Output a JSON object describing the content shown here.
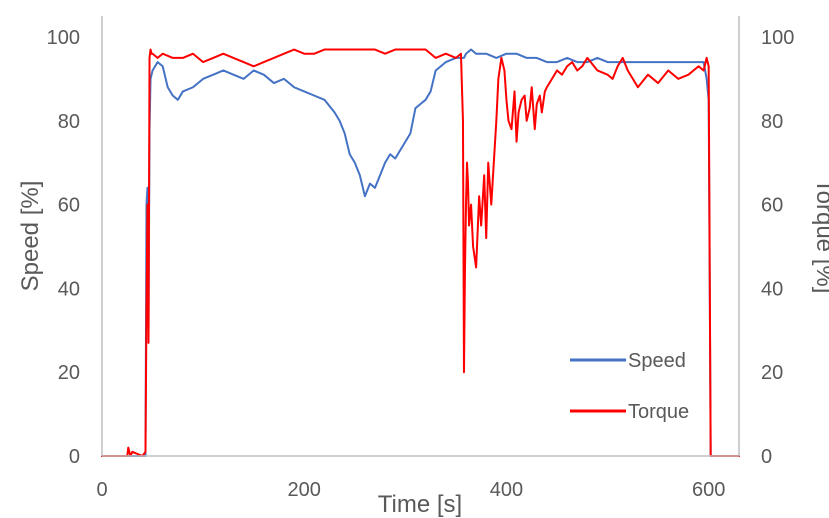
{
  "chart_data": {
    "type": "line",
    "title": "",
    "xlabel": "Time [s]",
    "ylabel": "Speed [%]",
    "y2label": "Torque [%]",
    "xlim": [
      0,
      630
    ],
    "ylim": [
      0,
      105
    ],
    "y2lim": [
      0,
      105
    ],
    "x_ticks": [
      "0",
      "200",
      "400",
      "600"
    ],
    "y_ticks": [
      "0",
      "20",
      "40",
      "60",
      "80",
      "100"
    ],
    "y2_ticks": [
      "0",
      "20",
      "40",
      "60",
      "80",
      "100"
    ],
    "grid": false,
    "legend_position": "bottom-right",
    "series": [
      {
        "name": "Speed",
        "axis": "left",
        "color": "#4472c4",
        "x": [
          0,
          43,
          44,
          45,
          46,
          47,
          48,
          50,
          55,
          60,
          65,
          70,
          75,
          80,
          90,
          100,
          110,
          120,
          130,
          140,
          150,
          160,
          170,
          180,
          190,
          200,
          210,
          220,
          230,
          235,
          240,
          245,
          250,
          255,
          260,
          265,
          270,
          275,
          280,
          285,
          290,
          295,
          300,
          305,
          310,
          315,
          320,
          325,
          330,
          340,
          350,
          358,
          360,
          365,
          370,
          380,
          390,
          400,
          410,
          420,
          430,
          440,
          450,
          460,
          470,
          480,
          490,
          500,
          520,
          540,
          560,
          580,
          595,
          598,
          600,
          602,
          605,
          610,
          620,
          630
        ],
        "y": [
          0,
          0,
          60,
          64,
          30,
          78,
          90,
          92,
          94,
          93,
          88,
          86,
          85,
          87,
          88,
          90,
          91,
          92,
          91,
          90,
          92,
          91,
          89,
          90,
          88,
          87,
          86,
          85,
          82,
          80,
          77,
          72,
          70,
          67,
          62,
          65,
          64,
          67,
          70,
          72,
          71,
          73,
          75,
          77,
          83,
          84,
          85,
          87,
          92,
          94,
          95,
          95,
          96,
          97,
          96,
          96,
          95,
          96,
          96,
          95,
          95,
          94,
          94,
          95,
          94,
          94,
          95,
          94,
          94,
          94,
          94,
          94,
          94,
          90,
          85,
          0,
          0,
          0,
          0,
          0
        ]
      },
      {
        "name": "Torque",
        "axis": "right",
        "color": "#ff0000",
        "x": [
          0,
          25,
          26,
          28,
          30,
          40,
          43,
          44,
          45,
          46,
          47,
          48,
          49,
          50,
          55,
          60,
          70,
          80,
          90,
          100,
          110,
          120,
          130,
          140,
          150,
          160,
          170,
          180,
          190,
          200,
          210,
          220,
          230,
          240,
          250,
          260,
          270,
          280,
          290,
          300,
          310,
          320,
          330,
          340,
          350,
          355,
          357,
          358,
          359,
          360,
          361,
          362,
          363,
          365,
          367,
          370,
          373,
          375,
          378,
          380,
          382,
          385,
          388,
          390,
          392,
          395,
          398,
          400,
          402,
          405,
          408,
          410,
          412,
          415,
          418,
          420,
          423,
          425,
          428,
          430,
          433,
          435,
          438,
          440,
          445,
          450,
          455,
          460,
          465,
          470,
          475,
          480,
          490,
          500,
          505,
          510,
          515,
          520,
          530,
          540,
          550,
          560,
          570,
          580,
          590,
          595,
          598,
          600,
          602,
          605,
          610,
          620,
          630
        ],
        "y": [
          0,
          0,
          2,
          0,
          1,
          0,
          1,
          35,
          60,
          27,
          95,
          97,
          96,
          96,
          95,
          96,
          95,
          95,
          96,
          94,
          95,
          96,
          95,
          94,
          93,
          94,
          95,
          96,
          97,
          96,
          96,
          97,
          97,
          97,
          97,
          97,
          97,
          96,
          97,
          97,
          97,
          97,
          95,
          96,
          95,
          96,
          80,
          20,
          45,
          60,
          70,
          65,
          55,
          60,
          50,
          45,
          62,
          55,
          67,
          52,
          70,
          60,
          72,
          80,
          90,
          95,
          92,
          85,
          80,
          78,
          87,
          75,
          82,
          85,
          86,
          80,
          83,
          88,
          78,
          84,
          86,
          82,
          87,
          88,
          90,
          92,
          91,
          93,
          94,
          92,
          93,
          95,
          92,
          91,
          90,
          93,
          95,
          92,
          88,
          91,
          89,
          92,
          90,
          91,
          93,
          92,
          95,
          93,
          0,
          0,
          0,
          0,
          0
        ]
      }
    ]
  }
}
